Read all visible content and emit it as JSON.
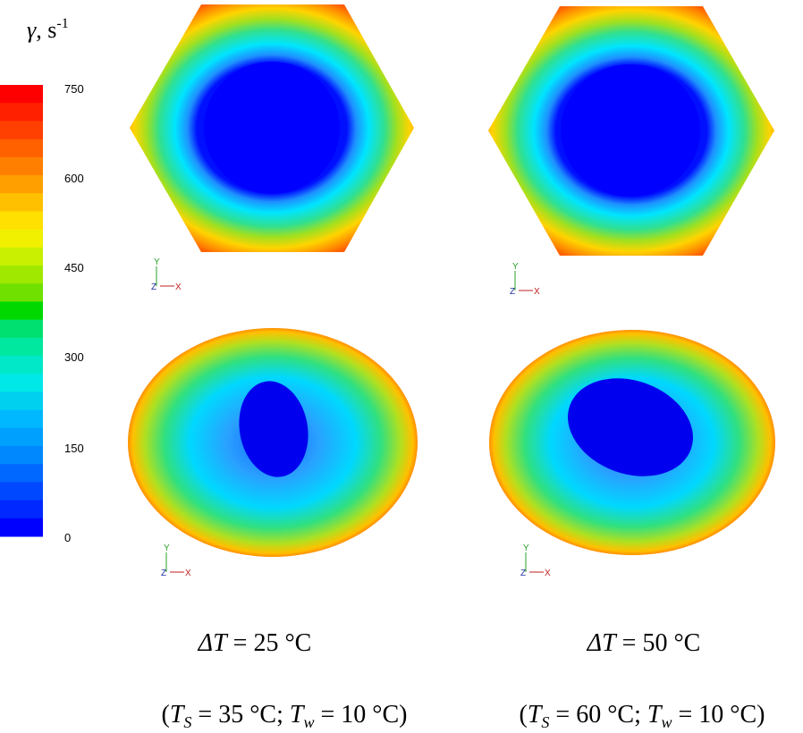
{
  "colorbar": {
    "title": [
      "γ",
      ", s",
      "-1"
    ],
    "ticks": [
      "750",
      "600",
      "450",
      "300",
      "150",
      "0"
    ]
  },
  "panels": [
    {
      "triad": [
        "Y",
        "Z",
        "X"
      ]
    },
    {
      "triad": [
        "Y",
        "Z",
        "X"
      ]
    },
    {
      "triad": [
        "Y",
        "Z",
        "X"
      ]
    },
    {
      "triad": [
        "Y",
        "Z",
        "X"
      ]
    }
  ],
  "captions": [
    {
      "delta": [
        "ΔT",
        " = 25 °C"
      ],
      "detail": [
        "(",
        "T",
        "S",
        " = 35 °C; ",
        "T",
        "w",
        " = 10 °C)"
      ]
    },
    {
      "delta": [
        "ΔT",
        " = 50 °C"
      ],
      "detail": [
        "(",
        "T",
        "S",
        " = 60 °C; ",
        "T",
        "w",
        " = 10 °C)"
      ]
    }
  ]
}
